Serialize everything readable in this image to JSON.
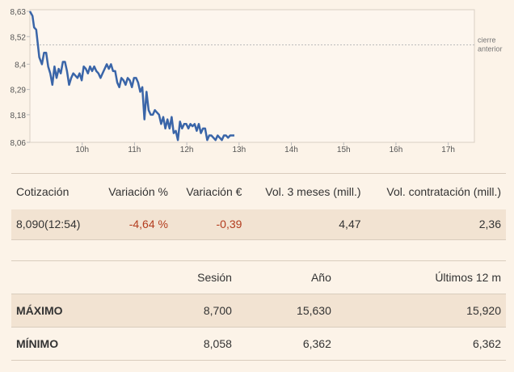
{
  "chart_data": {
    "type": "line",
    "y_ticks": [
      "8,63",
      "8,52",
      "8,4",
      "8,29",
      "8,18",
      "8,06"
    ],
    "x_ticks": [
      "10h",
      "11h",
      "12h",
      "13h",
      "14h",
      "15h",
      "16h",
      "17h"
    ],
    "ylim": [
      8.06,
      8.63
    ],
    "xlim": [
      9.0,
      17.5
    ],
    "reference_line": {
      "label": [
        "cierre",
        "anterior"
      ],
      "value": 8.484
    },
    "series": [
      {
        "color": "#3a65a8",
        "x": [
          9.0,
          9.05,
          9.08,
          9.12,
          9.18,
          9.23,
          9.27,
          9.31,
          9.35,
          9.39,
          9.43,
          9.47,
          9.51,
          9.55,
          9.59,
          9.63,
          9.67,
          9.71,
          9.75,
          9.79,
          9.83,
          9.87,
          9.91,
          9.95,
          9.99,
          10.03,
          10.07,
          10.11,
          10.15,
          10.19,
          10.23,
          10.27,
          10.31,
          10.35,
          10.39,
          10.43,
          10.47,
          10.51,
          10.55,
          10.59,
          10.63,
          10.67,
          10.71,
          10.75,
          10.79,
          10.83,
          10.87,
          10.91,
          10.95,
          10.99,
          11.03,
          11.07,
          11.11,
          11.15,
          11.19,
          11.23,
          11.27,
          11.31,
          11.35,
          11.39,
          11.43,
          11.47,
          11.51,
          11.55,
          11.59,
          11.63,
          11.67,
          11.71,
          11.75,
          11.79,
          11.83,
          11.87,
          11.91,
          11.95,
          11.99,
          12.03,
          12.07,
          12.11,
          12.15,
          12.19,
          12.23,
          12.27,
          12.31,
          12.35,
          12.39,
          12.43,
          12.47,
          12.51,
          12.55,
          12.59,
          12.63,
          12.67,
          12.71,
          12.75,
          12.79,
          12.83,
          12.87,
          12.91
        ],
        "y": [
          8.63,
          8.61,
          8.56,
          8.55,
          8.43,
          8.4,
          8.45,
          8.45,
          8.39,
          8.36,
          8.31,
          8.39,
          8.34,
          8.38,
          8.36,
          8.41,
          8.41,
          8.37,
          8.31,
          8.34,
          8.36,
          8.35,
          8.34,
          8.36,
          8.33,
          8.39,
          8.38,
          8.36,
          8.39,
          8.37,
          8.39,
          8.37,
          8.36,
          8.34,
          8.36,
          8.38,
          8.4,
          8.38,
          8.4,
          8.37,
          8.37,
          8.32,
          8.3,
          8.34,
          8.33,
          8.31,
          8.34,
          8.33,
          8.3,
          8.34,
          8.34,
          8.32,
          8.28,
          8.3,
          8.16,
          8.28,
          8.2,
          8.18,
          8.18,
          8.2,
          8.19,
          8.18,
          8.14,
          8.17,
          8.12,
          8.16,
          8.12,
          8.17,
          8.1,
          8.11,
          8.07,
          8.15,
          8.12,
          8.14,
          8.14,
          8.12,
          8.14,
          8.13,
          8.14,
          8.11,
          8.14,
          8.1,
          8.12,
          8.12,
          8.07,
          8.09,
          8.09,
          8.08,
          8.07,
          8.09,
          8.08,
          8.07,
          8.09,
          8.09,
          8.08,
          8.09,
          8.09,
          8.09
        ]
      }
    ]
  },
  "quote": {
    "headers": [
      "Cotización",
      "Variación %",
      "Variación €",
      "Vol. 3 meses (mill.)",
      "Vol. contratación (mill.)"
    ],
    "values": [
      "8,090(12:54)",
      "-4,64 %",
      "-0,39",
      "4,47",
      "2,36"
    ]
  },
  "range": {
    "headers": [
      "",
      "Sesión",
      "Año",
      "Últimos 12 m"
    ],
    "rows": [
      {
        "label": "MÁXIMO",
        "values": [
          "8,700",
          "15,630",
          "15,920"
        ]
      },
      {
        "label": "MÍNIMO",
        "values": [
          "8,058",
          "6,362",
          "6,362"
        ]
      }
    ]
  },
  "colors": {
    "background": "#fcf3e8",
    "row_shade": "#f2e3d2",
    "negative": "#b33c1e",
    "line": "#3a65a8"
  }
}
